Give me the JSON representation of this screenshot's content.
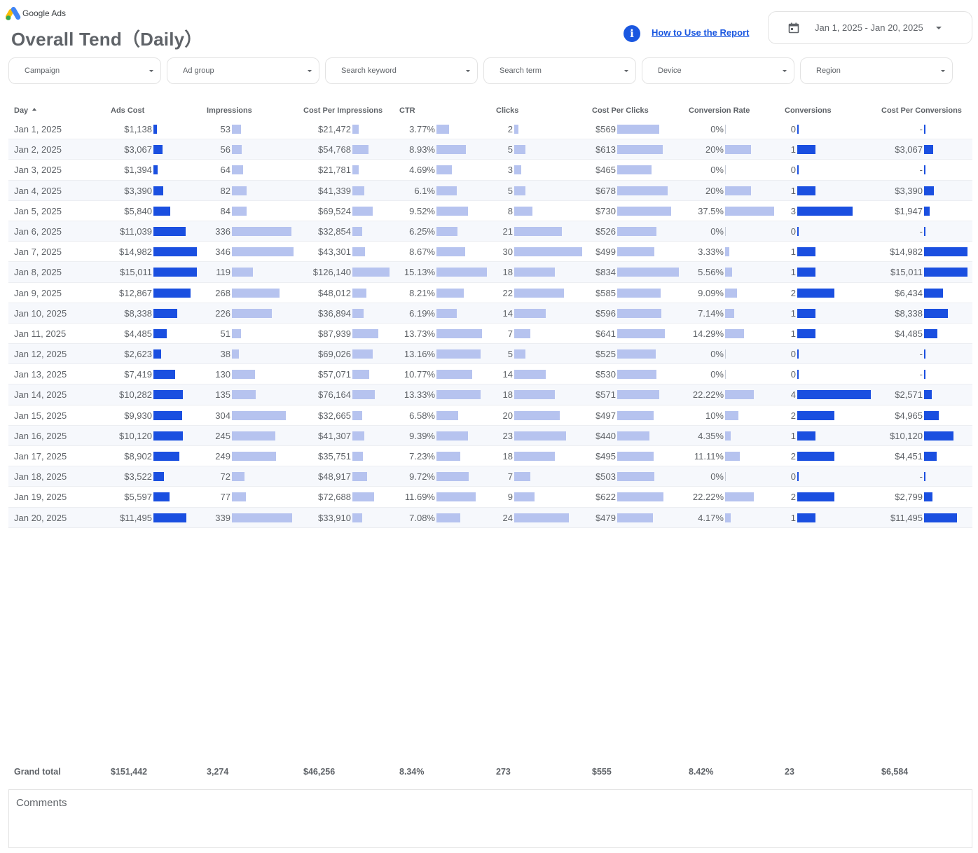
{
  "brand": {
    "name": "Google Ads"
  },
  "page": {
    "title": "Overall Tend（Daily）"
  },
  "help": {
    "link_label": "How to Use the Report",
    "icon": "info-icon"
  },
  "date_range": {
    "label": "Jan 1, 2025 - Jan 20, 2025",
    "icon": "calendar-icon"
  },
  "filters": [
    "Campaign",
    "Ad group",
    "Search keyword",
    "Search term",
    "Device",
    "Region"
  ],
  "colors": {
    "accent": "#1a57e0",
    "bar_dark": "#1a4fe0",
    "bar_light": "#b6c3ef",
    "row_alt": "#f6f8fc"
  },
  "table": {
    "columns": [
      "Day",
      "Ads Cost",
      "Impressions",
      "Cost Per Impressions",
      "CTR",
      "Clicks",
      "Cost Per Clicks",
      "Conversion Rate",
      "Conversions",
      "Cost Per Conversions"
    ],
    "sort": {
      "column": "Day",
      "direction": "ascending"
    },
    "rows": [
      {
        "day": "Jan 1, 2025",
        "ads_cost": "$1,138",
        "ads_cost_v": 1138,
        "impressions": "53",
        "impressions_v": 53,
        "cpi": "$21,472",
        "cpi_v": 21472,
        "ctr": "3.77%",
        "ctr_v": 3.77,
        "clicks": "2",
        "clicks_v": 2,
        "cpc": "$569",
        "cpc_v": 569,
        "conv_rate": "0%",
        "conv_rate_v": 0,
        "conversions": "0",
        "conversions_v": 0,
        "cost_per_conv": "-",
        "cost_per_conv_v": 0
      },
      {
        "day": "Jan 2, 2025",
        "ads_cost": "$3,067",
        "ads_cost_v": 3067,
        "impressions": "56",
        "impressions_v": 56,
        "cpi": "$54,768",
        "cpi_v": 54768,
        "ctr": "8.93%",
        "ctr_v": 8.93,
        "clicks": "5",
        "clicks_v": 5,
        "cpc": "$613",
        "cpc_v": 613,
        "conv_rate": "20%",
        "conv_rate_v": 20,
        "conversions": "1",
        "conversions_v": 1,
        "cost_per_conv": "$3,067",
        "cost_per_conv_v": 3067
      },
      {
        "day": "Jan 3, 2025",
        "ads_cost": "$1,394",
        "ads_cost_v": 1394,
        "impressions": "64",
        "impressions_v": 64,
        "cpi": "$21,781",
        "cpi_v": 21781,
        "ctr": "4.69%",
        "ctr_v": 4.69,
        "clicks": "3",
        "clicks_v": 3,
        "cpc": "$465",
        "cpc_v": 465,
        "conv_rate": "0%",
        "conv_rate_v": 0,
        "conversions": "0",
        "conversions_v": 0,
        "cost_per_conv": "-",
        "cost_per_conv_v": 0
      },
      {
        "day": "Jan 4, 2025",
        "ads_cost": "$3,390",
        "ads_cost_v": 3390,
        "impressions": "82",
        "impressions_v": 82,
        "cpi": "$41,339",
        "cpi_v": 41339,
        "ctr": "6.1%",
        "ctr_v": 6.1,
        "clicks": "5",
        "clicks_v": 5,
        "cpc": "$678",
        "cpc_v": 678,
        "conv_rate": "20%",
        "conv_rate_v": 20,
        "conversions": "1",
        "conversions_v": 1,
        "cost_per_conv": "$3,390",
        "cost_per_conv_v": 3390
      },
      {
        "day": "Jan 5, 2025",
        "ads_cost": "$5,840",
        "ads_cost_v": 5840,
        "impressions": "84",
        "impressions_v": 84,
        "cpi": "$69,524",
        "cpi_v": 69524,
        "ctr": "9.52%",
        "ctr_v": 9.52,
        "clicks": "8",
        "clicks_v": 8,
        "cpc": "$730",
        "cpc_v": 730,
        "conv_rate": "37.5%",
        "conv_rate_v": 37.5,
        "conversions": "3",
        "conversions_v": 3,
        "cost_per_conv": "$1,947",
        "cost_per_conv_v": 1947
      },
      {
        "day": "Jan 6, 2025",
        "ads_cost": "$11,039",
        "ads_cost_v": 11039,
        "impressions": "336",
        "impressions_v": 336,
        "cpi": "$32,854",
        "cpi_v": 32854,
        "ctr": "6.25%",
        "ctr_v": 6.25,
        "clicks": "21",
        "clicks_v": 21,
        "cpc": "$526",
        "cpc_v": 526,
        "conv_rate": "0%",
        "conv_rate_v": 0,
        "conversions": "0",
        "conversions_v": 0,
        "cost_per_conv": "-",
        "cost_per_conv_v": 0
      },
      {
        "day": "Jan 7, 2025",
        "ads_cost": "$14,982",
        "ads_cost_v": 14982,
        "impressions": "346",
        "impressions_v": 346,
        "cpi": "$43,301",
        "cpi_v": 43301,
        "ctr": "8.67%",
        "ctr_v": 8.67,
        "clicks": "30",
        "clicks_v": 30,
        "cpc": "$499",
        "cpc_v": 499,
        "conv_rate": "3.33%",
        "conv_rate_v": 3.33,
        "conversions": "1",
        "conversions_v": 1,
        "cost_per_conv": "$14,982",
        "cost_per_conv_v": 14982
      },
      {
        "day": "Jan 8, 2025",
        "ads_cost": "$15,011",
        "ads_cost_v": 15011,
        "impressions": "119",
        "impressions_v": 119,
        "cpi": "$126,140",
        "cpi_v": 126140,
        "ctr": "15.13%",
        "ctr_v": 15.13,
        "clicks": "18",
        "clicks_v": 18,
        "cpc": "$834",
        "cpc_v": 834,
        "conv_rate": "5.56%",
        "conv_rate_v": 5.56,
        "conversions": "1",
        "conversions_v": 1,
        "cost_per_conv": "$15,011",
        "cost_per_conv_v": 15011
      },
      {
        "day": "Jan 9, 2025",
        "ads_cost": "$12,867",
        "ads_cost_v": 12867,
        "impressions": "268",
        "impressions_v": 268,
        "cpi": "$48,012",
        "cpi_v": 48012,
        "ctr": "8.21%",
        "ctr_v": 8.21,
        "clicks": "22",
        "clicks_v": 22,
        "cpc": "$585",
        "cpc_v": 585,
        "conv_rate": "9.09%",
        "conv_rate_v": 9.09,
        "conversions": "2",
        "conversions_v": 2,
        "cost_per_conv": "$6,434",
        "cost_per_conv_v": 6434
      },
      {
        "day": "Jan 10, 2025",
        "ads_cost": "$8,338",
        "ads_cost_v": 8338,
        "impressions": "226",
        "impressions_v": 226,
        "cpi": "$36,894",
        "cpi_v": 36894,
        "ctr": "6.19%",
        "ctr_v": 6.19,
        "clicks": "14",
        "clicks_v": 14,
        "cpc": "$596",
        "cpc_v": 596,
        "conv_rate": "7.14%",
        "conv_rate_v": 7.14,
        "conversions": "1",
        "conversions_v": 1,
        "cost_per_conv": "$8,338",
        "cost_per_conv_v": 8338
      },
      {
        "day": "Jan 11, 2025",
        "ads_cost": "$4,485",
        "ads_cost_v": 4485,
        "impressions": "51",
        "impressions_v": 51,
        "cpi": "$87,939",
        "cpi_v": 87939,
        "ctr": "13.73%",
        "ctr_v": 13.73,
        "clicks": "7",
        "clicks_v": 7,
        "cpc": "$641",
        "cpc_v": 641,
        "conv_rate": "14.29%",
        "conv_rate_v": 14.29,
        "conversions": "1",
        "conversions_v": 1,
        "cost_per_conv": "$4,485",
        "cost_per_conv_v": 4485
      },
      {
        "day": "Jan 12, 2025",
        "ads_cost": "$2,623",
        "ads_cost_v": 2623,
        "impressions": "38",
        "impressions_v": 38,
        "cpi": "$69,026",
        "cpi_v": 69026,
        "ctr": "13.16%",
        "ctr_v": 13.16,
        "clicks": "5",
        "clicks_v": 5,
        "cpc": "$525",
        "cpc_v": 525,
        "conv_rate": "0%",
        "conv_rate_v": 0,
        "conversions": "0",
        "conversions_v": 0,
        "cost_per_conv": "-",
        "cost_per_conv_v": 0
      },
      {
        "day": "Jan 13, 2025",
        "ads_cost": "$7,419",
        "ads_cost_v": 7419,
        "impressions": "130",
        "impressions_v": 130,
        "cpi": "$57,071",
        "cpi_v": 57071,
        "ctr": "10.77%",
        "ctr_v": 10.77,
        "clicks": "14",
        "clicks_v": 14,
        "cpc": "$530",
        "cpc_v": 530,
        "conv_rate": "0%",
        "conv_rate_v": 0,
        "conversions": "0",
        "conversions_v": 0,
        "cost_per_conv": "-",
        "cost_per_conv_v": 0
      },
      {
        "day": "Jan 14, 2025",
        "ads_cost": "$10,282",
        "ads_cost_v": 10282,
        "impressions": "135",
        "impressions_v": 135,
        "cpi": "$76,164",
        "cpi_v": 76164,
        "ctr": "13.33%",
        "ctr_v": 13.33,
        "clicks": "18",
        "clicks_v": 18,
        "cpc": "$571",
        "cpc_v": 571,
        "conv_rate": "22.22%",
        "conv_rate_v": 22.22,
        "conversions": "4",
        "conversions_v": 4,
        "cost_per_conv": "$2,571",
        "cost_per_conv_v": 2571
      },
      {
        "day": "Jan 15, 2025",
        "ads_cost": "$9,930",
        "ads_cost_v": 9930,
        "impressions": "304",
        "impressions_v": 304,
        "cpi": "$32,665",
        "cpi_v": 32665,
        "ctr": "6.58%",
        "ctr_v": 6.58,
        "clicks": "20",
        "clicks_v": 20,
        "cpc": "$497",
        "cpc_v": 497,
        "conv_rate": "10%",
        "conv_rate_v": 10,
        "conversions": "2",
        "conversions_v": 2,
        "cost_per_conv": "$4,965",
        "cost_per_conv_v": 4965
      },
      {
        "day": "Jan 16, 2025",
        "ads_cost": "$10,120",
        "ads_cost_v": 10120,
        "impressions": "245",
        "impressions_v": 245,
        "cpi": "$41,307",
        "cpi_v": 41307,
        "ctr": "9.39%",
        "ctr_v": 9.39,
        "clicks": "23",
        "clicks_v": 23,
        "cpc": "$440",
        "cpc_v": 440,
        "conv_rate": "4.35%",
        "conv_rate_v": 4.35,
        "conversions": "1",
        "conversions_v": 1,
        "cost_per_conv": "$10,120",
        "cost_per_conv_v": 10120
      },
      {
        "day": "Jan 17, 2025",
        "ads_cost": "$8,902",
        "ads_cost_v": 8902,
        "impressions": "249",
        "impressions_v": 249,
        "cpi": "$35,751",
        "cpi_v": 35751,
        "ctr": "7.23%",
        "ctr_v": 7.23,
        "clicks": "18",
        "clicks_v": 18,
        "cpc": "$495",
        "cpc_v": 495,
        "conv_rate": "11.11%",
        "conv_rate_v": 11.11,
        "conversions": "2",
        "conversions_v": 2,
        "cost_per_conv": "$4,451",
        "cost_per_conv_v": 4451
      },
      {
        "day": "Jan 18, 2025",
        "ads_cost": "$3,522",
        "ads_cost_v": 3522,
        "impressions": "72",
        "impressions_v": 72,
        "cpi": "$48,917",
        "cpi_v": 48917,
        "ctr": "9.72%",
        "ctr_v": 9.72,
        "clicks": "7",
        "clicks_v": 7,
        "cpc": "$503",
        "cpc_v": 503,
        "conv_rate": "0%",
        "conv_rate_v": 0,
        "conversions": "0",
        "conversions_v": 0,
        "cost_per_conv": "-",
        "cost_per_conv_v": 0
      },
      {
        "day": "Jan 19, 2025",
        "ads_cost": "$5,597",
        "ads_cost_v": 5597,
        "impressions": "77",
        "impressions_v": 77,
        "cpi": "$72,688",
        "cpi_v": 72688,
        "ctr": "11.69%",
        "ctr_v": 11.69,
        "clicks": "9",
        "clicks_v": 9,
        "cpc": "$622",
        "cpc_v": 622,
        "conv_rate": "22.22%",
        "conv_rate_v": 22.22,
        "conversions": "2",
        "conversions_v": 2,
        "cost_per_conv": "$2,799",
        "cost_per_conv_v": 2799
      },
      {
        "day": "Jan 20, 2025",
        "ads_cost": "$11,495",
        "ads_cost_v": 11495,
        "impressions": "339",
        "impressions_v": 339,
        "cpi": "$33,910",
        "cpi_v": 33910,
        "ctr": "7.08%",
        "ctr_v": 7.08,
        "clicks": "24",
        "clicks_v": 24,
        "cpc": "$479",
        "cpc_v": 479,
        "conv_rate": "4.17%",
        "conv_rate_v": 4.17,
        "conversions": "1",
        "conversions_v": 1,
        "cost_per_conv": "$11,495",
        "cost_per_conv_v": 11495
      }
    ],
    "grand_total": {
      "label": "Grand total",
      "ads_cost": "$151,442",
      "impressions": "3,274",
      "cpi": "$46,256",
      "ctr": "8.34%",
      "clicks": "273",
      "cpc": "$555",
      "conv_rate": "8.42%",
      "conversions": "23",
      "cost_per_conv": "$6,584"
    }
  },
  "comments": {
    "label": "Comments"
  }
}
